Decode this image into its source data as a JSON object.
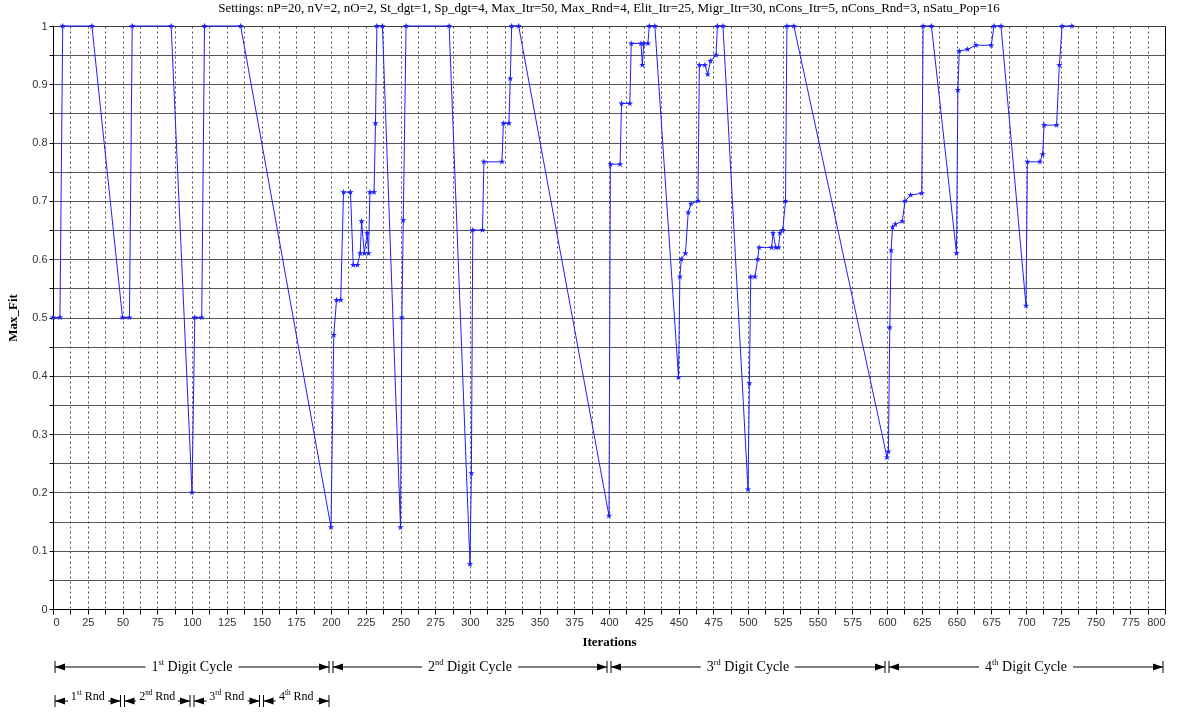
{
  "chart_data": {
    "type": "line",
    "title": "Settings: nP=20, nV=2, nO=2, St_dgt=1, Sp_dgt=4, Max_Itr=50, Max_Rnd=4, Elit_Itr=25, Migr_Itr=30, nCons_Itr=5, nCons_Rnd=3, nSatu_Pop=16",
    "xlabel": "Iterations",
    "ylabel": "Max_Fit",
    "x": [
      0,
      5,
      7,
      28,
      50,
      55,
      57,
      85,
      100,
      102,
      107,
      109,
      135,
      200,
      202,
      204,
      207,
      209,
      214,
      216,
      219,
      221,
      222,
      224,
      226,
      227,
      228,
      231,
      232,
      233,
      237,
      250,
      251,
      252,
      254,
      285,
      300,
      301,
      302,
      309,
      310,
      323,
      324,
      328,
      329,
      330,
      335,
      400,
      401,
      408,
      409,
      415,
      416,
      423,
      424,
      425,
      428,
      429,
      433,
      450,
      451,
      452,
      455,
      457,
      459,
      464,
      465,
      469,
      471,
      473,
      477,
      478,
      482,
      500,
      501,
      502,
      505,
      507,
      508,
      517,
      518,
      520,
      522,
      523,
      525,
      527,
      528,
      533,
      600,
      601,
      602,
      603,
      604,
      606,
      611,
      613,
      617,
      625,
      626,
      632,
      650,
      651,
      652,
      658,
      664,
      675,
      677,
      682,
      700,
      701,
      710,
      712,
      713,
      722,
      724,
      726,
      733
    ],
    "values": [
      0.5,
      0.5,
      1,
      1,
      0.5,
      0.5,
      1,
      1,
      0.2,
      0.5,
      0.5,
      1,
      1,
      0.14,
      0.47,
      0.53,
      0.53,
      0.715,
      0.715,
      0.59,
      0.59,
      0.61,
      0.665,
      0.61,
      0.645,
      0.61,
      0.715,
      0.715,
      0.833,
      1,
      1,
      0.14,
      0.5,
      0.667,
      1,
      1,
      0.077,
      0.233,
      0.65,
      0.65,
      0.767,
      0.767,
      0.833,
      0.833,
      0.91,
      1,
      1,
      0.16,
      0.763,
      0.763,
      0.867,
      0.867,
      0.97,
      0.97,
      0.933,
      0.97,
      0.97,
      1,
      1,
      0.397,
      0.57,
      0.6,
      0.61,
      0.68,
      0.695,
      0.7,
      0.933,
      0.933,
      0.917,
      0.94,
      0.95,
      1,
      1,
      0.205,
      0.387,
      0.57,
      0.57,
      0.6,
      0.62,
      0.62,
      0.645,
      0.62,
      0.62,
      0.645,
      0.65,
      0.7,
      1,
      1,
      0.26,
      0.27,
      0.483,
      0.615,
      0.655,
      0.66,
      0.665,
      0.7,
      0.71,
      0.713,
      1,
      1,
      0.61,
      0.89,
      0.957,
      0.96,
      0.967,
      0.967,
      1,
      1,
      0.52,
      0.767,
      0.767,
      0.78,
      0.83,
      0.83,
      0.933,
      1,
      1
    ],
    "color": "#1f1fff",
    "marker": "star",
    "line_style": "solid",
    "grid": true,
    "xlim": [
      0,
      800
    ],
    "ylim": [
      0,
      1
    ],
    "xticks": [
      0,
      {
        "value": 12.5,
        "label": null
      },
      25,
      {
        "value": 37.5,
        "label": null
      },
      50,
      {
        "value": 62.5,
        "label": null
      },
      75,
      {
        "value": 87.5,
        "label": null
      },
      100,
      {
        "value": 112.5,
        "label": null
      },
      125,
      {
        "value": 137.5,
        "label": null
      },
      150,
      {
        "value": 162.5,
        "label": null
      },
      175,
      {
        "value": 187.5,
        "label": null
      },
      200,
      {
        "value": 212.5,
        "label": null
      },
      225,
      {
        "value": 237.5,
        "label": null
      },
      250,
      {
        "value": 262.5,
        "label": null
      },
      275,
      {
        "value": 287.5,
        "label": null
      },
      300,
      {
        "value": 312.5,
        "label": null
      },
      325,
      {
        "value": 337.5,
        "label": null
      },
      350,
      {
        "value": 362.5,
        "label": null
      },
      375,
      {
        "value": 387.5,
        "label": null
      },
      400,
      {
        "value": 412.5,
        "label": null
      },
      425,
      {
        "value": 437.5,
        "label": null
      },
      450,
      {
        "value": 462.5,
        "label": null
      },
      475,
      {
        "value": 487.5,
        "label": null
      },
      500,
      {
        "value": 512.5,
        "label": null
      },
      525,
      {
        "value": 537.5,
        "label": null
      },
      550,
      {
        "value": 562.5,
        "label": null
      },
      575,
      {
        "value": 587.5,
        "label": null
      },
      600,
      {
        "value": 612.5,
        "label": null
      },
      625,
      {
        "value": 637.5,
        "label": null
      },
      650,
      {
        "value": 662.5,
        "label": null
      },
      675,
      {
        "value": 687.5,
        "label": null
      },
      700,
      {
        "value": 712.5,
        "label": null
      },
      725,
      {
        "value": 737.5,
        "label": null
      },
      750,
      {
        "value": 762.5,
        "label": null
      },
      775,
      {
        "value": 787.5,
        "label": null
      },
      800
    ],
    "yticks": [
      0,
      {
        "value": 0.05,
        "label": null
      },
      0.1,
      {
        "value": 0.15,
        "label": null
      },
      0.2,
      {
        "value": 0.25,
        "label": null
      },
      0.3,
      {
        "value": 0.35,
        "label": null
      },
      0.4,
      {
        "value": 0.45,
        "label": null
      },
      0.5,
      {
        "value": 0.55,
        "label": null
      },
      0.6,
      {
        "value": 0.65,
        "label": null
      },
      0.7,
      {
        "value": 0.75,
        "label": null
      },
      0.8,
      {
        "value": 0.85,
        "label": null
      },
      0.9,
      {
        "value": 0.95,
        "label": null
      },
      1
    ],
    "annotations": [
      "1$^{st}$ Digit Cycle",
      "2$^{nd}$ Digit Cycle",
      "3$^{rd}$ Digit Cycle",
      "4$^{th}$ Digit Cycle",
      "1$^{st}$ Rnd",
      "2$^{nd}$ Rnd",
      "3$^{rd}$ Rnd",
      "4$^{th}$ Rnd"
    ]
  }
}
